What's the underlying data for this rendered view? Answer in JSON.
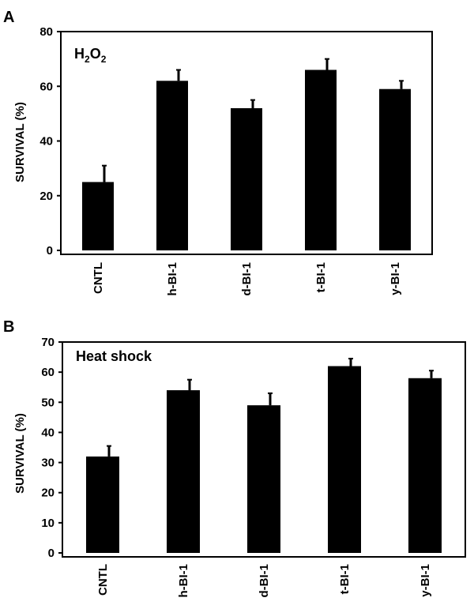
{
  "chart_data": [
    {
      "type": "bar",
      "panel": "A",
      "title": "H2O2",
      "title_parts": [
        "H",
        "2",
        "O",
        "2"
      ],
      "ylabel": "SURVIVAL (%)",
      "xlabel": "",
      "categories": [
        "CNTL",
        "h-BI-1",
        "d-BI-1",
        "t-BI-1",
        "y-BI-1"
      ],
      "values": [
        25,
        62,
        52,
        66,
        59
      ],
      "error": [
        6,
        4,
        3,
        4,
        3
      ],
      "ylim": [
        0,
        80
      ],
      "yticks": [
        0,
        20,
        40,
        60,
        80
      ],
      "grid": false,
      "bar_color": "#000000"
    },
    {
      "type": "bar",
      "panel": "B",
      "title": "Heat shock",
      "ylabel": "SURVIVAL (%)",
      "xlabel": "",
      "categories": [
        "CNTL",
        "h-BI-1",
        "d-BI-1",
        "t-BI-1",
        "y-BI-1"
      ],
      "values": [
        32,
        54,
        49,
        62,
        58
      ],
      "error": [
        3.5,
        3.5,
        4,
        2.5,
        2.5
      ],
      "ylim": [
        0,
        70
      ],
      "yticks": [
        0,
        10,
        20,
        30,
        40,
        50,
        60,
        70
      ],
      "grid": false,
      "bar_color": "#000000"
    }
  ]
}
